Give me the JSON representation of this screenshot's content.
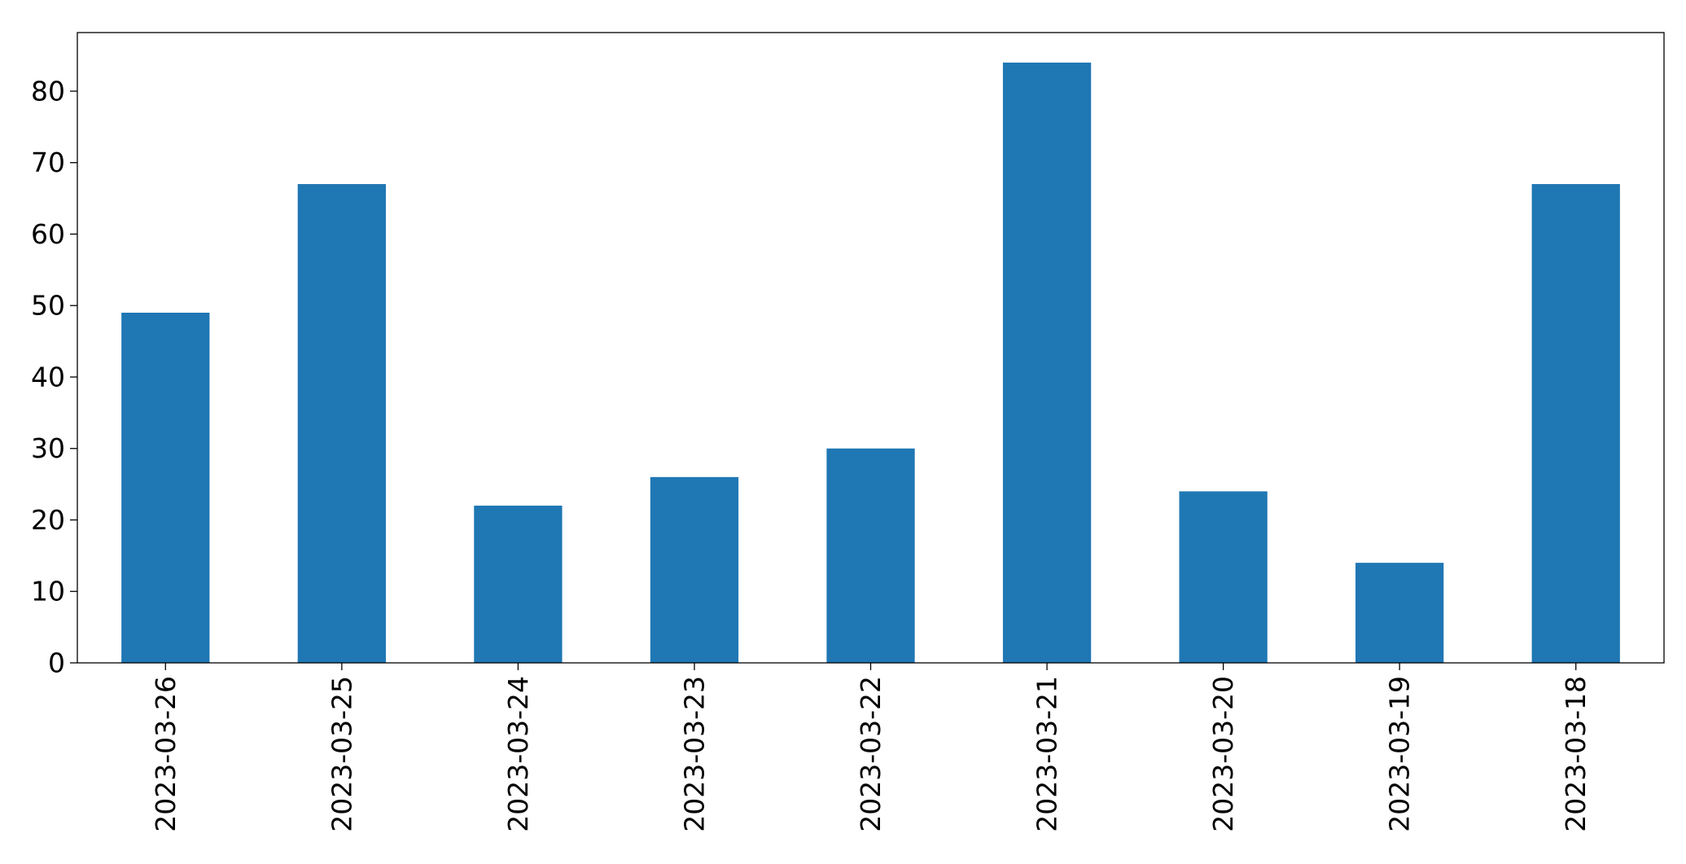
{
  "chart_data": {
    "type": "bar",
    "categories": [
      "2023-03-26",
      "2023-03-25",
      "2023-03-24",
      "2023-03-23",
      "2023-03-22",
      "2023-03-21",
      "2023-03-20",
      "2023-03-19",
      "2023-03-18"
    ],
    "values": [
      49,
      67,
      22,
      26,
      30,
      84,
      24,
      14,
      67
    ],
    "title": "",
    "xlabel": "",
    "ylabel": "",
    "ylim": [
      0,
      88.2
    ],
    "yticks": [
      0,
      10,
      20,
      30,
      40,
      50,
      60,
      70,
      80
    ],
    "grid": false,
    "legend": "none",
    "bar_color": "#1f77b4",
    "x_tick_rotation": "vertical"
  }
}
